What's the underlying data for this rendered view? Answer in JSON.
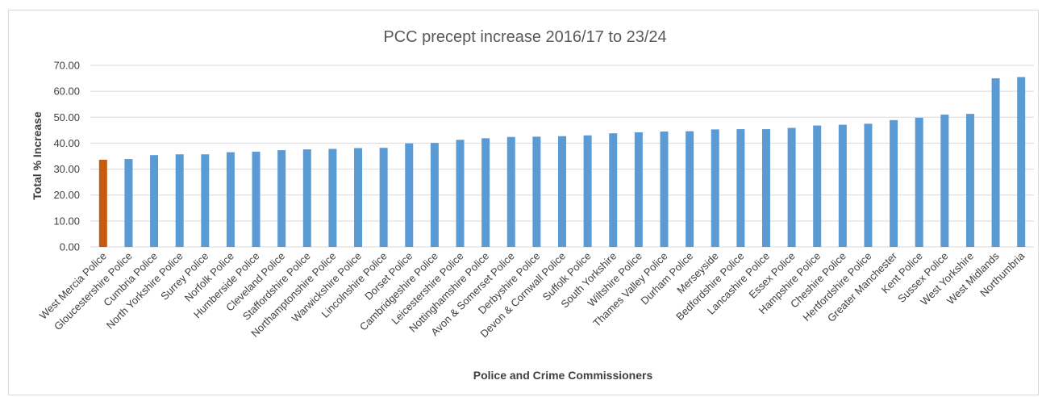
{
  "chart_data": {
    "type": "bar",
    "title": "PCC precept increase 2016/17 to 23/24",
    "xlabel": "Police and Crime Commissioners",
    "ylabel": "Total % Increase",
    "ylim": [
      0,
      70
    ],
    "yticks": [
      "0.00",
      "10.00",
      "20.00",
      "30.00",
      "40.00",
      "50.00",
      "60.00",
      "70.00"
    ],
    "grid": true,
    "colors": {
      "default": "#5b9bd5",
      "highlight": "#c55a11"
    },
    "highlight_index": 0,
    "categories": [
      "West Mercia Police",
      "Gloucestershire Police",
      "Cumbria Police",
      "North Yorkshire Police",
      "Surrey Police",
      "Norfolk Police",
      "Humberside Police",
      "Cleveland Police",
      "Staffordshire Police",
      "Northamptonshire Police",
      "Warwickshire Police",
      "Lincolnshire Police",
      "Dorset Police",
      "Cambridgeshire Police",
      "Leicestershire Police",
      "Nottinghamshire Police",
      "Avon & Somerset Police",
      "Derbyshire Police",
      "Devon & Cornwall Police",
      "Suffolk Police",
      "South Yorkshire",
      "Wiltshire Police",
      "Thames Valley Police",
      "Durham Police",
      "Merseyside",
      "Bedfordshire Police",
      "Lancashire Police",
      "Essex Police",
      "Hampshire Police",
      "Cheshire Police",
      "Hertfordshire Police",
      "Greater Manchester",
      "Kent Police",
      "Sussex Police",
      "West Yorkshire",
      "West Midlands",
      "Northumbria"
    ],
    "values": [
      33.6,
      33.9,
      35.4,
      35.7,
      35.7,
      36.5,
      36.7,
      37.3,
      37.6,
      37.8,
      38.1,
      38.2,
      39.9,
      40.1,
      41.3,
      41.9,
      42.4,
      42.5,
      42.7,
      43.0,
      43.8,
      44.2,
      44.5,
      44.6,
      45.3,
      45.4,
      45.4,
      45.9,
      46.8,
      47.1,
      47.5,
      48.9,
      49.8,
      51.0,
      51.3,
      65.0,
      65.5
    ]
  }
}
